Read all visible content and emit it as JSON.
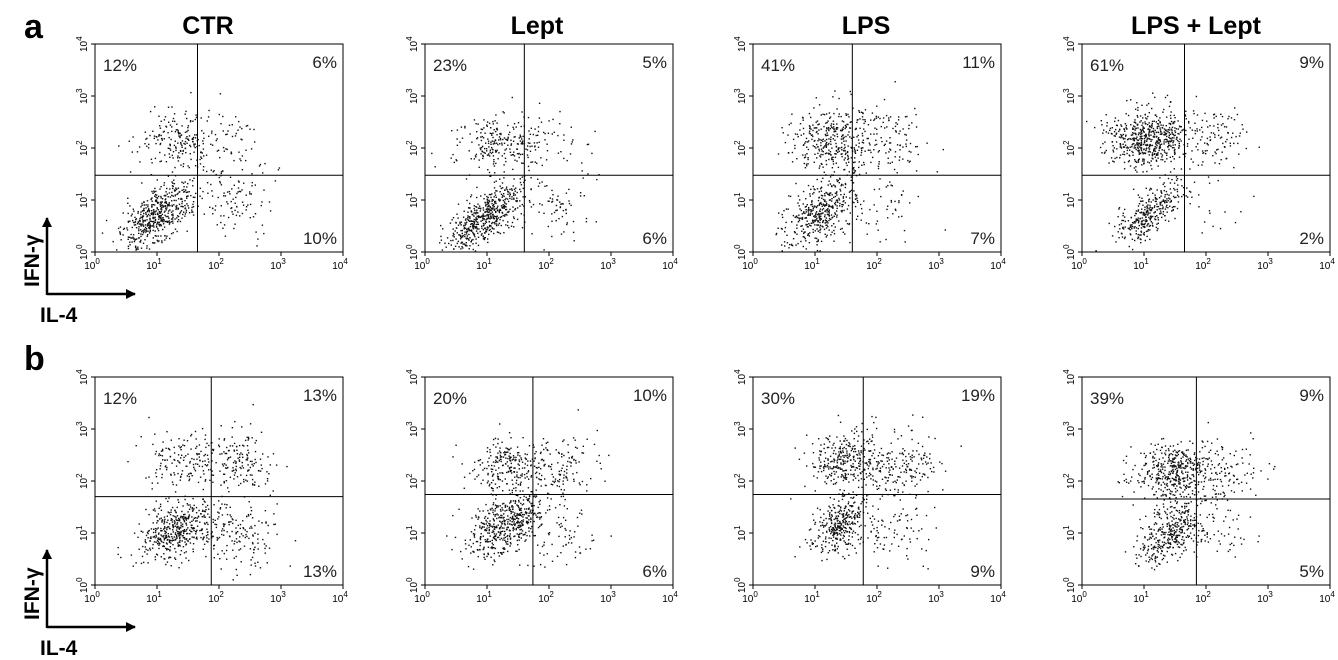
{
  "figure": {
    "column_titles": [
      "CTR",
      "Lept",
      "LPS",
      "LPS + Lept"
    ],
    "row_labels": [
      "a",
      "b"
    ],
    "y_axis_label": "IFN-γ",
    "x_axis_label": "IL-4",
    "tick_exponents": [
      "0",
      "1",
      "2",
      "3",
      "4"
    ],
    "tick_base": "10"
  },
  "chart_data": [
    {
      "type": "scatter",
      "row": "a",
      "panel": "CTR",
      "xlim": [
        1,
        10000
      ],
      "ylim": [
        1,
        10000
      ],
      "log_x": true,
      "log_y": true,
      "gate": {
        "x": 45,
        "y": 30
      },
      "quadrants": {
        "upper_left": "12%",
        "upper_right": "6%",
        "lower_left": "",
        "lower_right": "10%"
      },
      "clusters": [
        {
          "cx": 10,
          "cy": 5,
          "sx": 0.28,
          "sy": 0.33,
          "rho": 0.6,
          "n": 520
        },
        {
          "cx": 20,
          "cy": 150,
          "sx": 0.32,
          "sy": 0.28,
          "rho": 0.1,
          "n": 190
        },
        {
          "cx": 160,
          "cy": 10,
          "sx": 0.3,
          "sy": 0.35,
          "rho": 0.0,
          "n": 110
        },
        {
          "cx": 130,
          "cy": 130,
          "sx": 0.35,
          "sy": 0.3,
          "rho": 0.0,
          "n": 60
        }
      ]
    },
    {
      "type": "scatter",
      "row": "a",
      "panel": "Lept",
      "xlim": [
        1,
        10000
      ],
      "ylim": [
        1,
        10000
      ],
      "log_x": true,
      "log_y": true,
      "gate": {
        "x": 40,
        "y": 30
      },
      "quadrants": {
        "upper_left": "23%",
        "upper_right": "5%",
        "lower_left": "",
        "lower_right": "6%"
      },
      "clusters": [
        {
          "cx": 9,
          "cy": 5,
          "sx": 0.3,
          "sy": 0.35,
          "rho": 0.7,
          "n": 560
        },
        {
          "cx": 15,
          "cy": 120,
          "sx": 0.35,
          "sy": 0.3,
          "rho": 0.1,
          "n": 230
        },
        {
          "cx": 140,
          "cy": 8,
          "sx": 0.3,
          "sy": 0.3,
          "rho": 0.0,
          "n": 70
        },
        {
          "cx": 120,
          "cy": 130,
          "sx": 0.35,
          "sy": 0.3,
          "rho": 0.0,
          "n": 55
        }
      ]
    },
    {
      "type": "scatter",
      "row": "a",
      "panel": "LPS",
      "xlim": [
        1,
        10000
      ],
      "ylim": [
        1,
        10000
      ],
      "log_x": true,
      "log_y": true,
      "gate": {
        "x": 40,
        "y": 30
      },
      "quadrants": {
        "upper_left": "41%",
        "upper_right": "11%",
        "lower_left": "",
        "lower_right": "7%"
      },
      "clusters": [
        {
          "cx": 12,
          "cy": 6,
          "sx": 0.28,
          "sy": 0.33,
          "rho": 0.55,
          "n": 420
        },
        {
          "cx": 20,
          "cy": 150,
          "sx": 0.38,
          "sy": 0.32,
          "rho": 0.1,
          "n": 380
        },
        {
          "cx": 150,
          "cy": 120,
          "sx": 0.35,
          "sy": 0.32,
          "rho": 0.0,
          "n": 90
        },
        {
          "cx": 120,
          "cy": 10,
          "sx": 0.3,
          "sy": 0.3,
          "rho": 0.0,
          "n": 60
        }
      ]
    },
    {
      "type": "scatter",
      "row": "a",
      "panel": "LPS + Lept",
      "xlim": [
        1,
        10000
      ],
      "ylim": [
        1,
        10000
      ],
      "log_x": true,
      "log_y": true,
      "gate": {
        "x": 45,
        "y": 30
      },
      "quadrants": {
        "upper_left": "61%",
        "upper_right": "9%",
        "lower_left": "",
        "lower_right": "2%"
      },
      "clusters": [
        {
          "cx": 12,
          "cy": 150,
          "sx": 0.33,
          "sy": 0.28,
          "rho": 0.05,
          "n": 600
        },
        {
          "cx": 12,
          "cy": 6,
          "sx": 0.28,
          "sy": 0.3,
          "rho": 0.7,
          "n": 330
        },
        {
          "cx": 180,
          "cy": 160,
          "sx": 0.3,
          "sy": 0.28,
          "rho": 0.0,
          "n": 90
        },
        {
          "cx": 150,
          "cy": 8,
          "sx": 0.25,
          "sy": 0.25,
          "rho": 0.0,
          "n": 15
        }
      ]
    },
    {
      "type": "scatter",
      "row": "b",
      "panel": "CTR",
      "xlim": [
        1,
        10000
      ],
      "ylim": [
        1,
        10000
      ],
      "log_x": true,
      "log_y": true,
      "gate": {
        "x": 75,
        "y": 50
      },
      "quadrants": {
        "upper_left": "12%",
        "upper_right": "13%",
        "lower_left": "",
        "lower_right": "13%"
      },
      "clusters": [
        {
          "cx": 20,
          "cy": 12,
          "sx": 0.3,
          "sy": 0.3,
          "rho": 0.4,
          "n": 450
        },
        {
          "cx": 25,
          "cy": 250,
          "sx": 0.3,
          "sy": 0.28,
          "rho": 0.0,
          "n": 150
        },
        {
          "cx": 200,
          "cy": 250,
          "sx": 0.3,
          "sy": 0.3,
          "rho": 0.0,
          "n": 160
        },
        {
          "cx": 200,
          "cy": 10,
          "sx": 0.3,
          "sy": 0.35,
          "rho": 0.0,
          "n": 160
        }
      ]
    },
    {
      "type": "scatter",
      "row": "b",
      "panel": "Lept",
      "xlim": [
        1,
        10000
      ],
      "ylim": [
        1,
        10000
      ],
      "log_x": true,
      "log_y": true,
      "gate": {
        "x": 55,
        "y": 55
      },
      "quadrants": {
        "upper_left": "20%",
        "upper_right": "10%",
        "lower_left": "",
        "lower_right": "6%"
      },
      "clusters": [
        {
          "cx": 20,
          "cy": 15,
          "sx": 0.32,
          "sy": 0.32,
          "rho": 0.5,
          "n": 500
        },
        {
          "cx": 20,
          "cy": 200,
          "sx": 0.3,
          "sy": 0.28,
          "rho": 0.0,
          "n": 240
        },
        {
          "cx": 150,
          "cy": 200,
          "sx": 0.32,
          "sy": 0.3,
          "rho": 0.0,
          "n": 120
        },
        {
          "cx": 150,
          "cy": 10,
          "sx": 0.3,
          "sy": 0.3,
          "rho": 0.0,
          "n": 70
        }
      ]
    },
    {
      "type": "scatter",
      "row": "b",
      "panel": "LPS",
      "xlim": [
        1,
        10000
      ],
      "ylim": [
        1,
        10000
      ],
      "log_x": true,
      "log_y": true,
      "gate": {
        "x": 60,
        "y": 55
      },
      "quadrants": {
        "upper_left": "30%",
        "upper_right": "19%",
        "lower_left": "",
        "lower_right": "9%"
      },
      "clusters": [
        {
          "cx": 25,
          "cy": 15,
          "sx": 0.22,
          "sy": 0.28,
          "rho": 0.4,
          "n": 330
        },
        {
          "cx": 25,
          "cy": 250,
          "sx": 0.3,
          "sy": 0.28,
          "rho": 0.0,
          "n": 300
        },
        {
          "cx": 200,
          "cy": 200,
          "sx": 0.35,
          "sy": 0.32,
          "rho": 0.0,
          "n": 200
        },
        {
          "cx": 150,
          "cy": 10,
          "sx": 0.3,
          "sy": 0.3,
          "rho": 0.0,
          "n": 90
        }
      ]
    },
    {
      "type": "scatter",
      "row": "b",
      "panel": "LPS + Lept",
      "xlim": [
        1,
        10000
      ],
      "ylim": [
        1,
        10000
      ],
      "log_x": true,
      "log_y": true,
      "gate": {
        "x": 70,
        "y": 45
      },
      "quadrants": {
        "upper_left": "39%",
        "upper_right": "9%",
        "lower_left": "",
        "lower_right": "5%"
      },
      "clusters": [
        {
          "cx": 30,
          "cy": 150,
          "sx": 0.3,
          "sy": 0.28,
          "rho": 0.0,
          "n": 440
        },
        {
          "cx": 25,
          "cy": 10,
          "sx": 0.25,
          "sy": 0.3,
          "rho": 0.5,
          "n": 360
        },
        {
          "cx": 200,
          "cy": 150,
          "sx": 0.3,
          "sy": 0.3,
          "rho": 0.0,
          "n": 110
        },
        {
          "cx": 150,
          "cy": 10,
          "sx": 0.3,
          "sy": 0.3,
          "rho": 0.0,
          "n": 55
        }
      ]
    }
  ]
}
